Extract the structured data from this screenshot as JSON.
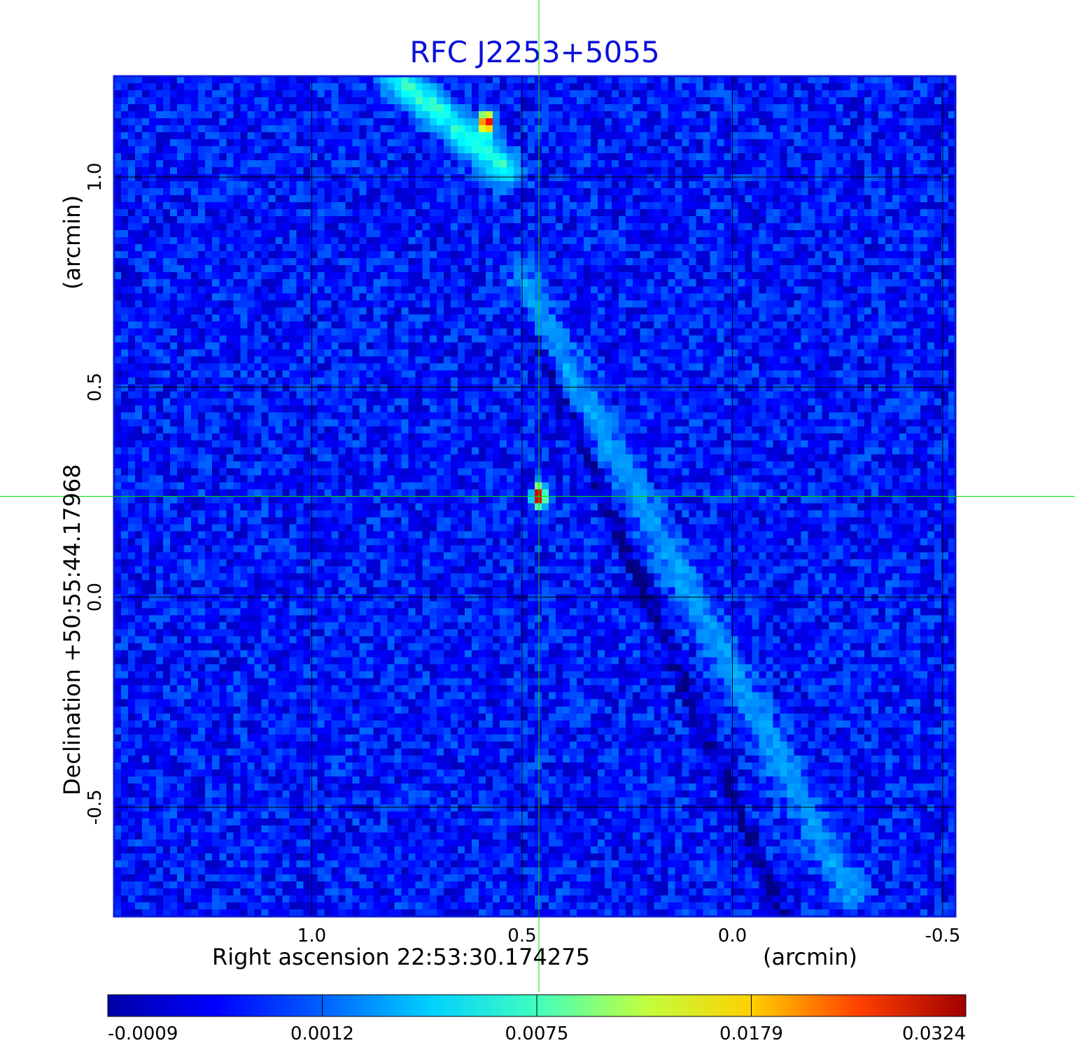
{
  "chart_data": {
    "type": "heatmap",
    "title": "RFC J2253+5055",
    "colormap": "jet",
    "x_axis": {
      "label": "Right ascension  22:53:30.174275",
      "unit_label": "(arcmin)",
      "ticks": [
        "1.0",
        "0.5",
        "0.0",
        "-0.5"
      ],
      "tick_values": [
        1.0,
        0.5,
        0.0,
        -0.5
      ],
      "range": [
        1.47,
        -0.53
      ],
      "reversed": true
    },
    "y_axis": {
      "label": "Declination  +50:55:44.17968",
      "unit_label": "(arcmin)",
      "ticks": [
        "1.0",
        "0.5",
        "0.0",
        "-0.5"
      ],
      "tick_values": [
        1.0,
        0.5,
        0.0,
        -0.5
      ],
      "range": [
        -0.76,
        1.24
      ]
    },
    "grid": true,
    "crosshair": {
      "x": 0.46,
      "y": 0.24,
      "color": "#00e000"
    },
    "colorbar": {
      "ticks": [
        "-0.0009",
        "0.0012",
        "0.0075",
        "0.0179",
        "0.0324"
      ],
      "tick_values": [
        -0.0009,
        0.0012,
        0.0075,
        0.0179,
        0.0324
      ],
      "range": [
        -0.0009,
        0.0324
      ]
    },
    "sources": [
      {
        "x": 0.46,
        "y": 0.24,
        "peak": 0.0324
      },
      {
        "x": 0.585,
        "y": 1.13,
        "peak": 0.0324
      }
    ],
    "features": [
      {
        "type": "faint-ridge",
        "from": [
          0.8,
          1.24
        ],
        "to": [
          0.54,
          1.02
        ],
        "level": 0.006
      },
      {
        "type": "faint-ridge",
        "from": [
          0.5,
          0.75
        ],
        "to": [
          -0.28,
          -0.7
        ],
        "level": 0.0022
      },
      {
        "type": "dark-ridge",
        "from": [
          0.51,
          0.72
        ],
        "to": [
          -0.12,
          -0.76
        ],
        "level": -0.0009
      }
    ],
    "background_level": 0.0003
  }
}
